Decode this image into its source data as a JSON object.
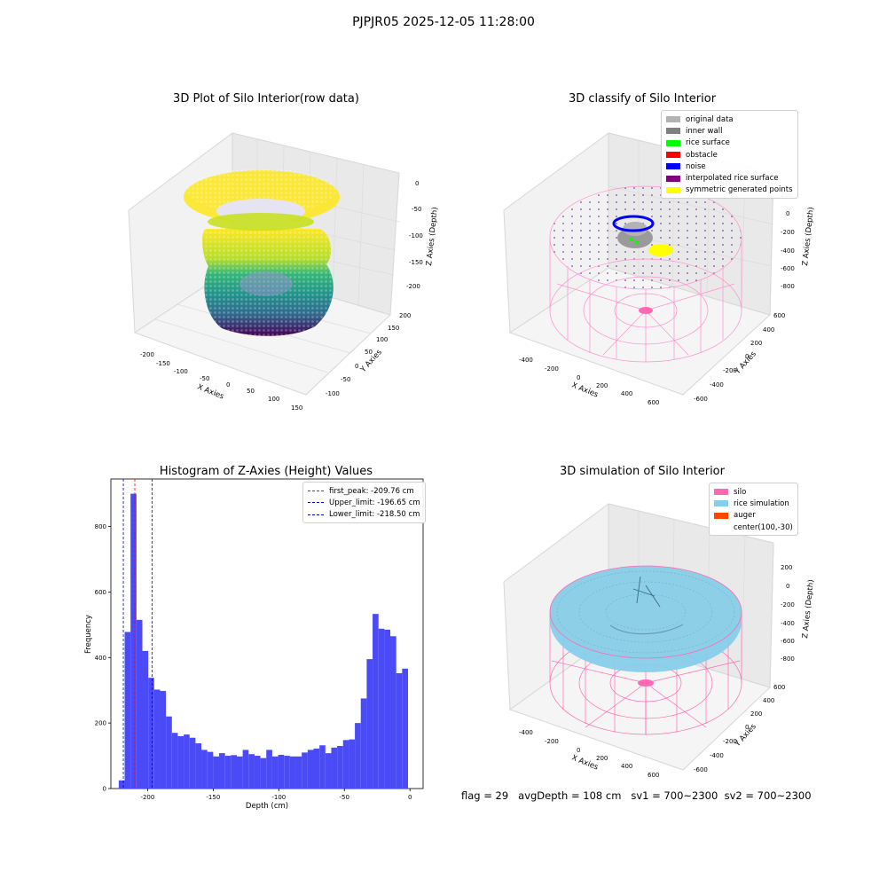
{
  "suptitle": "PJPJR05 2025-12-05 11:28:00",
  "panels": {
    "raw": {
      "title": "3D Plot of Silo Interior(row data)",
      "xlabel": "X Axies",
      "ylabel": "Y Axies",
      "zlabel": "Z Axies (Depth)",
      "xticks": [
        "-200",
        "-150",
        "-100",
        "-50",
        "0",
        "50",
        "100",
        "150"
      ],
      "yticks": [
        "-100",
        "-50",
        "0",
        "50",
        "100",
        "150",
        "200"
      ],
      "zticks": [
        "0",
        "-50",
        "-100",
        "-150",
        "-200"
      ]
    },
    "classify": {
      "title": "3D classify of Silo Interior",
      "xlabel": "X Axies",
      "ylabel": "Y Axies",
      "zlabel": "Z Axies (Depth)",
      "xticks": [
        "-400",
        "-200",
        "0",
        "200",
        "400",
        "600"
      ],
      "yticks": [
        "-600",
        "-400",
        "-200",
        "0",
        "200",
        "400",
        "600"
      ],
      "zticks": [
        "200",
        "0",
        "-200",
        "-400",
        "-600",
        "-800"
      ],
      "legend": [
        {
          "label": "original data",
          "color": "#b3b3b3"
        },
        {
          "label": "inner wall",
          "color": "#808080"
        },
        {
          "label": "rice surface",
          "color": "#00ff00"
        },
        {
          "label": "obstacle",
          "color": "#ff0000"
        },
        {
          "label": "noise",
          "color": "#0000ff"
        },
        {
          "label": "interpolated rice surface",
          "color": "#800080"
        },
        {
          "label": "symmetric generated points",
          "color": "#ffff00"
        }
      ]
    },
    "simulation": {
      "title": "3D simulation of Silo Interior",
      "xlabel": "X Axies",
      "ylabel": "Y Axies",
      "zlabel": "Z Axies (Depth)",
      "xticks": [
        "-400",
        "-200",
        "0",
        "200",
        "400",
        "600"
      ],
      "yticks": [
        "-600",
        "-400",
        "-200",
        "0",
        "200",
        "400",
        "600"
      ],
      "zticks": [
        "200",
        "0",
        "-200",
        "-400",
        "-600",
        "-800"
      ],
      "legend": [
        {
          "label": "silo",
          "color": "#ff69b4"
        },
        {
          "label": "rice simulation",
          "color": "#87ceeb"
        },
        {
          "label": "auger",
          "color": "#ff4500"
        },
        {
          "label": "center(100,-30)",
          "color": "#ffffff"
        }
      ]
    }
  },
  "chart_data": {
    "type": "bar",
    "title": "Histogram of Z-Axies (Height) Values",
    "xlabel": "Depth (cm)",
    "ylabel": "Frequency",
    "xlim": [
      -228,
      10
    ],
    "ylim": [
      0,
      945
    ],
    "xticks": [
      -200,
      -150,
      -100,
      -50,
      0
    ],
    "yticks": [
      0,
      200,
      400,
      600,
      800
    ],
    "bar_color": "#4a4af7",
    "bin_start": -222,
    "bin_width": 4.5,
    "values": [
      25,
      478,
      900,
      515,
      420,
      338,
      302,
      298,
      220,
      170,
      160,
      165,
      155,
      138,
      118,
      112,
      98,
      108,
      100,
      102,
      98,
      118,
      105,
      100,
      93,
      118,
      98,
      103,
      100,
      98,
      98,
      110,
      118,
      122,
      132,
      108,
      125,
      130,
      148,
      150,
      200,
      275,
      395,
      533,
      488,
      485,
      465,
      352,
      366
    ],
    "lines": [
      {
        "label": "first_peak: -209.76 cm",
        "x": -209.76,
        "color": "#ff0000"
      },
      {
        "label": "Upper_limit: -196.65 cm",
        "x": -196.65,
        "color": "#0000cc"
      },
      {
        "label": "Lower_limit: -218.50 cm",
        "x": -218.5,
        "color": "#0000cc"
      }
    ]
  },
  "footer": {
    "flag": "flag = 29",
    "avg_depth": "avgDepth = 108 cm",
    "sv1": "sv1 = 700~2300",
    "sv2": "sv2 = 700~2300"
  }
}
